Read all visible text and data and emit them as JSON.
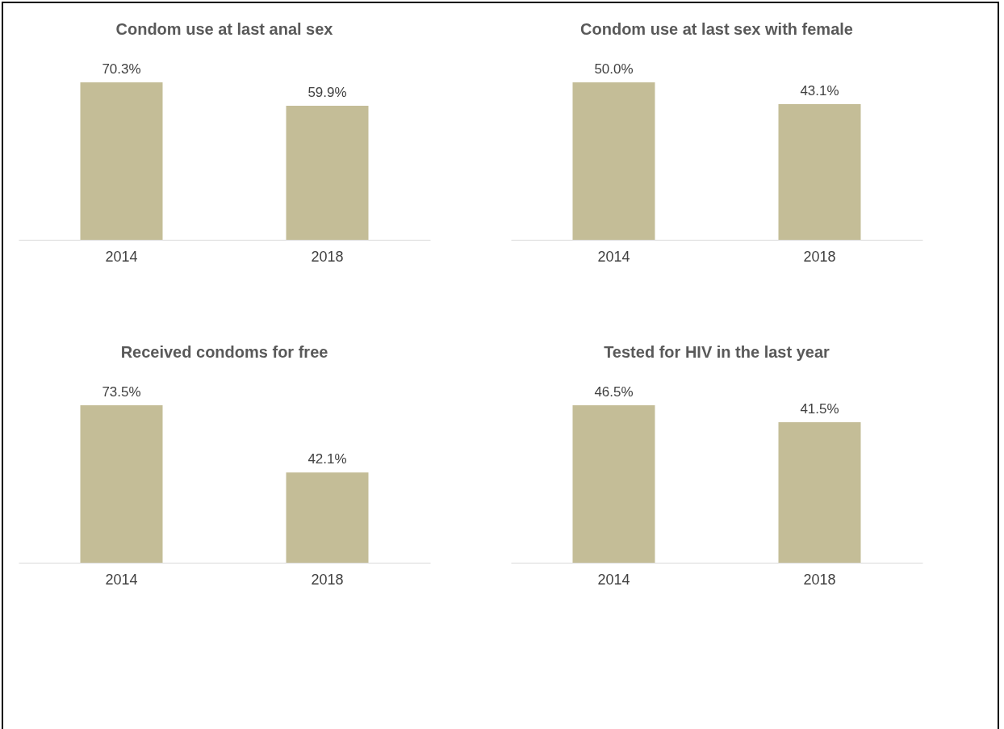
{
  "chart_data": [
    {
      "type": "bar",
      "title": "Condom use at last anal sex",
      "categories": [
        "2014",
        "2018"
      ],
      "values": [
        70.3,
        59.9
      ],
      "color": "#c4bd97",
      "value_labels": [
        "70.3%",
        "59.9%"
      ]
    },
    {
      "type": "bar",
      "title": "Condom use at last sex with female",
      "categories": [
        "2014",
        "2018"
      ],
      "values": [
        50.0,
        43.1
      ],
      "color": "#c4bd97",
      "value_labels": [
        "50.0%",
        "43.1%"
      ]
    },
    {
      "type": "bar",
      "title": "Received condoms for free",
      "categories": [
        "2014",
        "2018"
      ],
      "values": [
        73.5,
        42.1
      ],
      "color": "#c4bd97",
      "value_labels": [
        "73.5%",
        "42.1%"
      ]
    },
    {
      "type": "bar",
      "title": "Tested for HIV in the last year",
      "categories": [
        "2014",
        "2018"
      ],
      "values": [
        46.5,
        41.5
      ],
      "color": "#c4bd97",
      "value_labels": [
        "46.5%",
        "41.5%"
      ]
    }
  ]
}
